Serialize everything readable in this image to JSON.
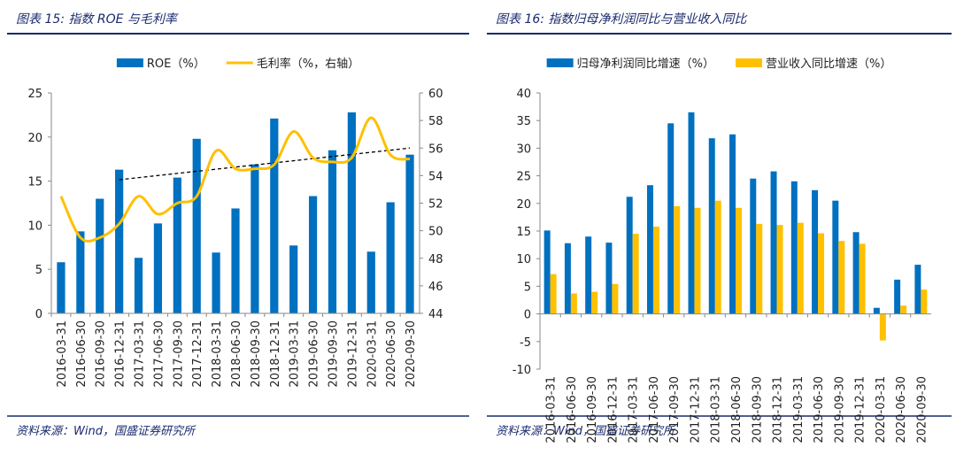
{
  "chart_data": [
    {
      "type": "combo",
      "title": "图表 15:  指数 ROE 与毛利率",
      "source": "资料来源：Wind，国盛证券研究所",
      "categories": [
        "2016-03-31",
        "2016-06-30",
        "2016-09-30",
        "2016-12-31",
        "2017-03-31",
        "2017-06-30",
        "2017-09-30",
        "2017-12-31",
        "2018-03-31",
        "2018-06-30",
        "2018-09-30",
        "2018-12-31",
        "2019-03-31",
        "2019-06-30",
        "2019-09-30",
        "2019-12-31",
        "2020-03-31",
        "2020-06-30",
        "2020-09-30"
      ],
      "series": [
        {
          "name": "ROE（%）",
          "type": "bar",
          "color": "#0070c0",
          "values": [
            5.8,
            9.3,
            13.0,
            16.3,
            6.3,
            10.2,
            15.4,
            19.8,
            6.9,
            11.9,
            16.9,
            22.1,
            7.7,
            13.3,
            18.5,
            22.8,
            7.0,
            12.6,
            18.0
          ]
        },
        {
          "name": "毛利率（%，右轴）",
          "type": "line",
          "axis": "y2",
          "color": "#ffc000",
          "values": [
            52.5,
            49.5,
            49.5,
            50.5,
            52.5,
            51.2,
            52.0,
            52.5,
            55.8,
            54.5,
            54.5,
            54.8,
            57.2,
            55.3,
            55.0,
            55.3,
            58.2,
            55.5,
            55.2
          ]
        }
      ],
      "trendline": {
        "x": [
          "2016-12-31",
          "2020-09-30"
        ],
        "values": [
          53.7,
          56.0
        ],
        "axis": "y2",
        "color": "#000000"
      },
      "ylim": [
        0,
        25
      ],
      "yticks": [
        0,
        5,
        10,
        15,
        20,
        25
      ],
      "y2lim": [
        44,
        60
      ],
      "y2ticks": [
        44,
        46,
        48,
        50,
        52,
        54,
        56,
        58,
        60
      ]
    },
    {
      "type": "bar",
      "title": "图表 16:  指数归母净利润同比与营业收入同比",
      "source": "资料来源：Wind，国盛证券研究所",
      "categories": [
        "2016-03-31",
        "2016-06-30",
        "2016-09-30",
        "2016-12-31",
        "2017-03-31",
        "2017-06-30",
        "2017-09-30",
        "2017-12-31",
        "2018-03-31",
        "2018-06-30",
        "2018-09-30",
        "2018-12-31",
        "2019-03-31",
        "2019-06-30",
        "2019-09-30",
        "2019-12-31",
        "2020-03-31",
        "2020-06-30",
        "2020-09-30"
      ],
      "series": [
        {
          "name": "归母净利润同比增速（%）",
          "type": "bar",
          "color": "#0070c0",
          "values": [
            15.1,
            12.8,
            14.0,
            12.9,
            21.2,
            23.3,
            34.5,
            36.5,
            31.8,
            32.5,
            24.5,
            25.8,
            24.0,
            22.4,
            20.5,
            14.8,
            1.1,
            6.2,
            8.9
          ]
        },
        {
          "name": "营业收入同比增速（%）",
          "type": "bar",
          "color": "#ffc000",
          "values": [
            7.2,
            3.7,
            4.0,
            5.4,
            14.5,
            15.8,
            19.5,
            19.2,
            20.5,
            19.2,
            16.3,
            16.1,
            16.5,
            14.6,
            13.2,
            12.7,
            -4.8,
            1.5,
            4.4
          ]
        }
      ],
      "ylim": [
        -10,
        40
      ],
      "yticks": [
        -10,
        -5,
        0,
        5,
        10,
        15,
        20,
        25,
        30,
        35,
        40
      ]
    }
  ]
}
